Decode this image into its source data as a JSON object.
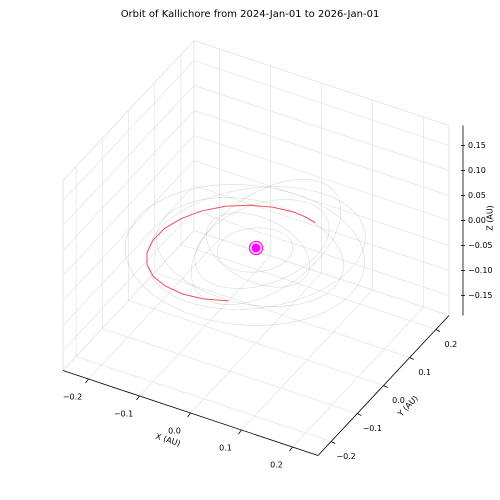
{
  "chart_data": {
    "type": "line3d",
    "title": "Orbit of Kallichore from 2024-Jan-01 to 2026-Jan-01",
    "xlabel": "X (AU)",
    "ylabel": "Y (AU)",
    "zlabel": "Z (AU)",
    "xlim": [
      -0.25,
      0.25
    ],
    "ylim": [
      -0.25,
      0.25
    ],
    "zlim": [
      -0.19,
      0.19
    ],
    "xticks": [
      {
        "value": -0.2,
        "label": "−0.2"
      },
      {
        "value": -0.1,
        "label": "−0.1"
      },
      {
        "value": 0,
        "label": "0.0"
      },
      0.1,
      0.2
    ],
    "yticks": [
      {
        "value": -0.2,
        "label": "−0.2"
      },
      {
        "value": -0.1,
        "label": "−0.1"
      },
      {
        "value": 0,
        "label": "0.0"
      },
      0.1,
      0.2
    ],
    "zticks": [
      {
        "value": -0.15,
        "label": "−0.15"
      },
      {
        "value": -0.1,
        "label": "−0.10"
      },
      {
        "value": -0.05,
        "label": "−0.05"
      },
      {
        "value": 0,
        "label": "0.00"
      },
      0.05,
      {
        "value": 0.1,
        "label": "0.10"
      },
      0.15
    ],
    "grid": true,
    "series": [
      {
        "color": "#f0505a",
        "x": [
          0.037,
          -0.006,
          -0.048,
          -0.088,
          -0.123,
          -0.151,
          -0.17,
          -0.179,
          -0.178,
          -0.165,
          -0.143,
          -0.112,
          -0.075,
          -0.034,
          0.008,
          0.035,
          0.06
        ],
        "y": [
          -0.179,
          -0.189,
          -0.188,
          -0.175,
          -0.153,
          -0.122,
          -0.085,
          -0.044,
          -0.002,
          0.038,
          0.073,
          0.101,
          0.12,
          0.129,
          0.128,
          0.12,
          0.109
        ],
        "z": [
          0.007,
          0.002,
          -0.003,
          -0.008,
          -0.013,
          -0.016,
          -0.019,
          -0.02,
          -0.02,
          -0.018,
          -0.015,
          -0.011,
          -0.007,
          -0.002,
          0.003,
          0.007,
          0.01
        ]
      },
      {
        "color": "#ff00ff",
        "x": [
          0
        ],
        "y": [
          0
        ],
        "z": [
          0
        ]
      }
    ]
  }
}
